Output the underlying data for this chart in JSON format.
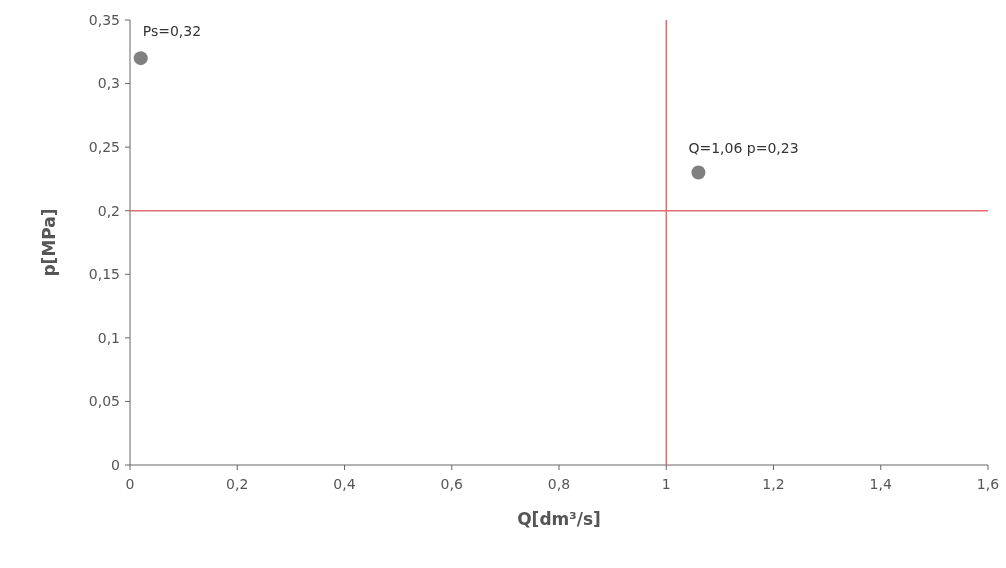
{
  "chart_data": {
    "type": "scatter",
    "xlabel": "Q[dm³/s]",
    "ylabel": "p[MPa]",
    "x": [
      0.02,
      1.06
    ],
    "series": [
      {
        "color": "#808080",
        "values": [
          0.32,
          0.23
        ]
      }
    ],
    "marker": "circle",
    "grid": false,
    "xlim": [
      0,
      1.6
    ],
    "xticks": [
      0,
      {
        "value": 0.2,
        "label": "0,2"
      },
      {
        "value": 0.4,
        "label": "0,4"
      },
      {
        "value": 0.6,
        "label": "0,6"
      },
      {
        "value": 0.8,
        "label": "0,8"
      },
      1,
      {
        "value": 1.2,
        "label": "1,2"
      },
      {
        "value": 1.4,
        "label": "1,4"
      },
      {
        "value": 1.6,
        "label": "1,6"
      }
    ],
    "ylim": [
      0,
      0.35
    ],
    "yticks": [
      0,
      {
        "value": 0.05,
        "label": "0,05"
      },
      {
        "value": 0.1,
        "label": "0,1"
      },
      {
        "value": 0.15,
        "label": "0,15"
      },
      {
        "value": 0.2,
        "label": "0,2"
      },
      {
        "value": 0.25,
        "label": "0,25"
      },
      {
        "value": 0.3,
        "label": "0,3"
      },
      {
        "value": 0.35,
        "label": "0,35"
      }
    ],
    "ref_lines": [
      {
        "axis": "y",
        "value": 0.2,
        "color": "#e07070"
      },
      {
        "axis": "x",
        "value": 1,
        "color": "#e07070"
      }
    ],
    "annotations": [
      {
        "text": "Ps=0,32",
        "x": 0.02,
        "y": 0.32
      },
      {
        "text": "Q=1,06 p=0,23",
        "x": 1.06,
        "y": 0.23
      }
    ]
  }
}
